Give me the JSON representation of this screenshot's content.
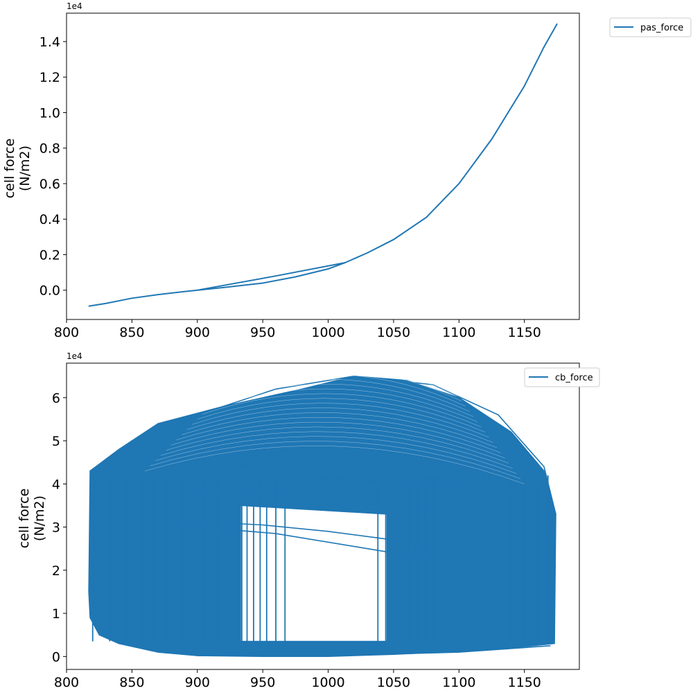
{
  "colors": {
    "series": "#1f77b4",
    "axes": "#000000",
    "legend_border": "#cccccc"
  },
  "chart_data": [
    {
      "type": "line",
      "legend": "pas_force",
      "legend_position": "outside-top-right",
      "xlabel": "",
      "ylabel": [
        "cell force",
        "(N/m2)"
      ],
      "offset_text": "1e4",
      "xlim": [
        800,
        1192
      ],
      "ylim": [
        -0.165,
        1.56
      ],
      "y_scale_note": "y values in units of 1e4",
      "x_ticks": [
        800,
        850,
        900,
        950,
        1000,
        1050,
        1100,
        1150
      ],
      "x_tick_labels": [
        "800",
        "850",
        "900",
        "950",
        "1000",
        "1050",
        "1100",
        "1150"
      ],
      "y_ticks": [
        0.0,
        0.2,
        0.4,
        0.6,
        0.8,
        1.0,
        1.2,
        1.4
      ],
      "y_tick_labels": [
        "0.0",
        "0.2",
        "0.4",
        "0.6",
        "0.8",
        "1.0",
        "1.2",
        "1.4"
      ],
      "grid": false,
      "series": [
        {
          "name": "pas_force",
          "points": [
            [
              817,
              -0.09
            ],
            [
              830,
              -0.075
            ],
            [
              850,
              -0.045
            ],
            [
              870,
              -0.025
            ],
            [
              890,
              -0.008
            ],
            [
              900,
              0.0
            ],
            [
              920,
              0.015
            ],
            [
              950,
              0.04
            ],
            [
              975,
              0.075
            ],
            [
              1000,
              0.12
            ],
            [
              1013,
              0.155
            ],
            [
              1030,
              0.21
            ],
            [
              1050,
              0.285
            ],
            [
              1075,
              0.41
            ],
            [
              1100,
              0.6
            ],
            [
              1125,
              0.85
            ],
            [
              1150,
              1.15
            ],
            [
              1165,
              1.37
            ],
            [
              1175,
              1.5
            ]
          ]
        },
        {
          "name": "pas_force",
          "points": [
            [
              900,
              0.0
            ],
            [
              960,
              0.08
            ],
            [
              1013,
              0.155
            ]
          ]
        }
      ]
    },
    {
      "type": "line",
      "legend": "cb_force",
      "legend_position": "top-right",
      "xlabel": "",
      "ylabel": [
        "cell force",
        "(N/m2)"
      ],
      "offset_text": "1e4",
      "xlim": [
        800,
        1192
      ],
      "ylim": [
        -0.3,
        6.8
      ],
      "y_scale_note": "y values in units of 1e4",
      "x_ticks": [
        800,
        850,
        900,
        950,
        1000,
        1050,
        1100,
        1150
      ],
      "x_tick_labels": [
        "800",
        "850",
        "900",
        "950",
        "1000",
        "1050",
        "1100",
        "1150"
      ],
      "y_ticks": [
        0,
        1,
        2,
        3,
        4,
        5,
        6
      ],
      "y_tick_labels": [
        "0",
        "1",
        "2",
        "3",
        "4",
        "5",
        "6"
      ],
      "grid": false,
      "series": [
        {
          "name": "cb_force",
          "filled_region": [
            [
              818,
              0.9
            ],
            [
              817,
              1.5
            ],
            [
              818,
              4.3
            ],
            [
              840,
              4.8
            ],
            [
              870,
              5.4
            ],
            [
              920,
              5.8
            ],
            [
              980,
              6.2
            ],
            [
              1020,
              6.5
            ],
            [
              1060,
              6.4
            ],
            [
              1100,
              6.0
            ],
            [
              1140,
              5.2
            ],
            [
              1165,
              4.3
            ],
            [
              1174,
              3.3
            ],
            [
              1173,
              0.3
            ],
            [
              1140,
              0.2
            ],
            [
              1100,
              0.12
            ],
            [
              1050,
              0.05
            ],
            [
              1000,
              0.0
            ],
            [
              950,
              0.0
            ],
            [
              900,
              0.02
            ],
            [
              870,
              0.1
            ],
            [
              840,
              0.3
            ],
            [
              825,
              0.5
            ]
          ],
          "hole": [
            [
              933,
              3.5
            ],
            [
              1045,
              3.3
            ],
            [
              1045,
              0.35
            ],
            [
              933,
              0.35
            ]
          ],
          "curves": [
            [
              [
                818,
                4.3
              ],
              [
                850,
                5.0
              ],
              [
                900,
                5.6
              ],
              [
                960,
                6.2
              ],
              [
                1020,
                6.5
              ],
              [
                1080,
                6.3
              ],
              [
                1130,
                5.6
              ],
              [
                1165,
                4.4
              ],
              [
                1174,
                3.3
              ]
            ],
            [
              [
                840,
                4.6
              ],
              [
                900,
                5.3
              ],
              [
                980,
                5.8
              ],
              [
                1050,
                5.7
              ],
              [
                1120,
                5.1
              ],
              [
                1165,
                3.9
              ]
            ],
            [
              [
                870,
                4.4
              ],
              [
                950,
                4.45
              ],
              [
                1020,
                4.35
              ],
              [
                1100,
                4.05
              ],
              [
                1160,
                3.6
              ]
            ],
            [
              [
                885,
                4.25
              ],
              [
                960,
                4.2
              ],
              [
                1040,
                4.05
              ],
              [
                1106,
                3.85
              ]
            ],
            [
              [
                895,
                3.9
              ],
              [
                980,
                3.75
              ],
              [
                1060,
                3.45
              ],
              [
                1106,
                3.2
              ]
            ],
            [
              [
                884,
                3.15
              ],
              [
                950,
                3.05
              ],
              [
                1000,
                2.9
              ],
              [
                1050,
                2.7
              ],
              [
                1106,
                2.3
              ]
            ],
            [
              [
                900,
                3.0
              ],
              [
                960,
                2.85
              ],
              [
                1020,
                2.55
              ],
              [
                1080,
                2.25
              ],
              [
                1110,
                1.7
              ]
            ],
            [
              [
                900,
                0.02
              ],
              [
                1000,
                0.02
              ],
              [
                1100,
                0.1
              ],
              [
                1170,
                0.25
              ]
            ]
          ],
          "verticals": [
            820,
            833,
            846,
            858,
            867,
            876,
            884,
            888,
            892,
            896,
            900,
            905,
            910,
            915,
            920,
            925,
            930,
            934,
            938,
            943,
            948,
            953,
            960,
            967,
            1038,
            1044,
            1050,
            1056,
            1062,
            1068,
            1074,
            1080,
            1088,
            1094,
            1100,
            1106,
            1112,
            1118,
            1124,
            1130,
            1140,
            1150,
            1160,
            1168
          ]
        }
      ]
    }
  ]
}
